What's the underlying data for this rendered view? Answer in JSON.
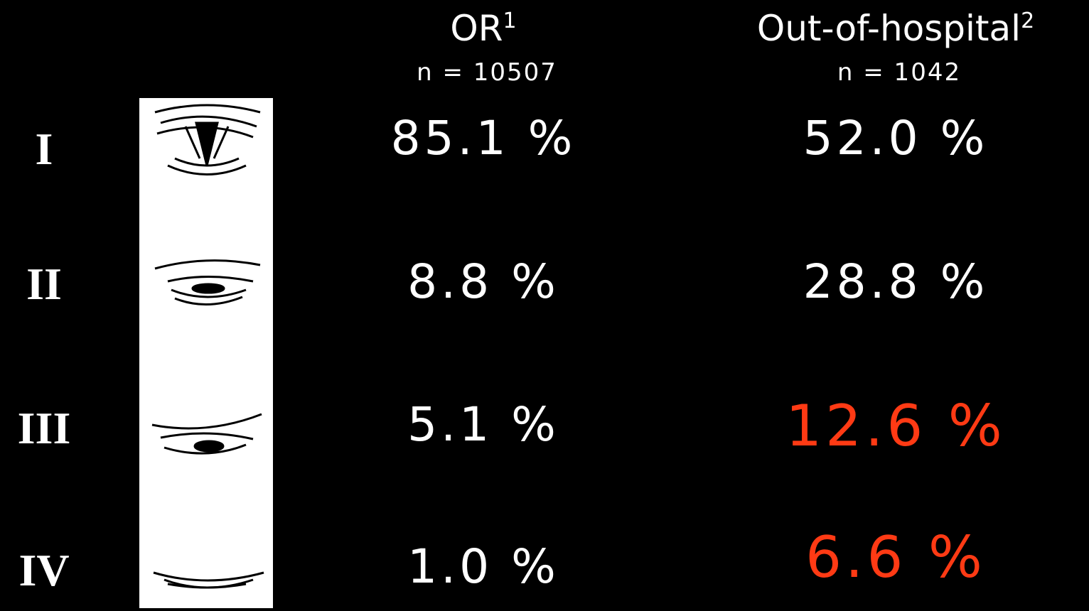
{
  "columns": [
    {
      "title": "OR",
      "note": "1",
      "n": "n = 10507"
    },
    {
      "title": "Out-of-hospital",
      "note": "2",
      "n": "n = 1042"
    }
  ],
  "rows": [
    {
      "grade": "I",
      "values": [
        "85.1 %",
        "52.0 %"
      ]
    },
    {
      "grade": "II",
      "values": [
        "8.8 %",
        "28.8 %"
      ]
    },
    {
      "grade": "III",
      "values": [
        "5.1 %",
        "12.6 %"
      ]
    },
    {
      "grade": "IV",
      "values": [
        "1.0 %",
        "6.6 %"
      ]
    }
  ]
}
